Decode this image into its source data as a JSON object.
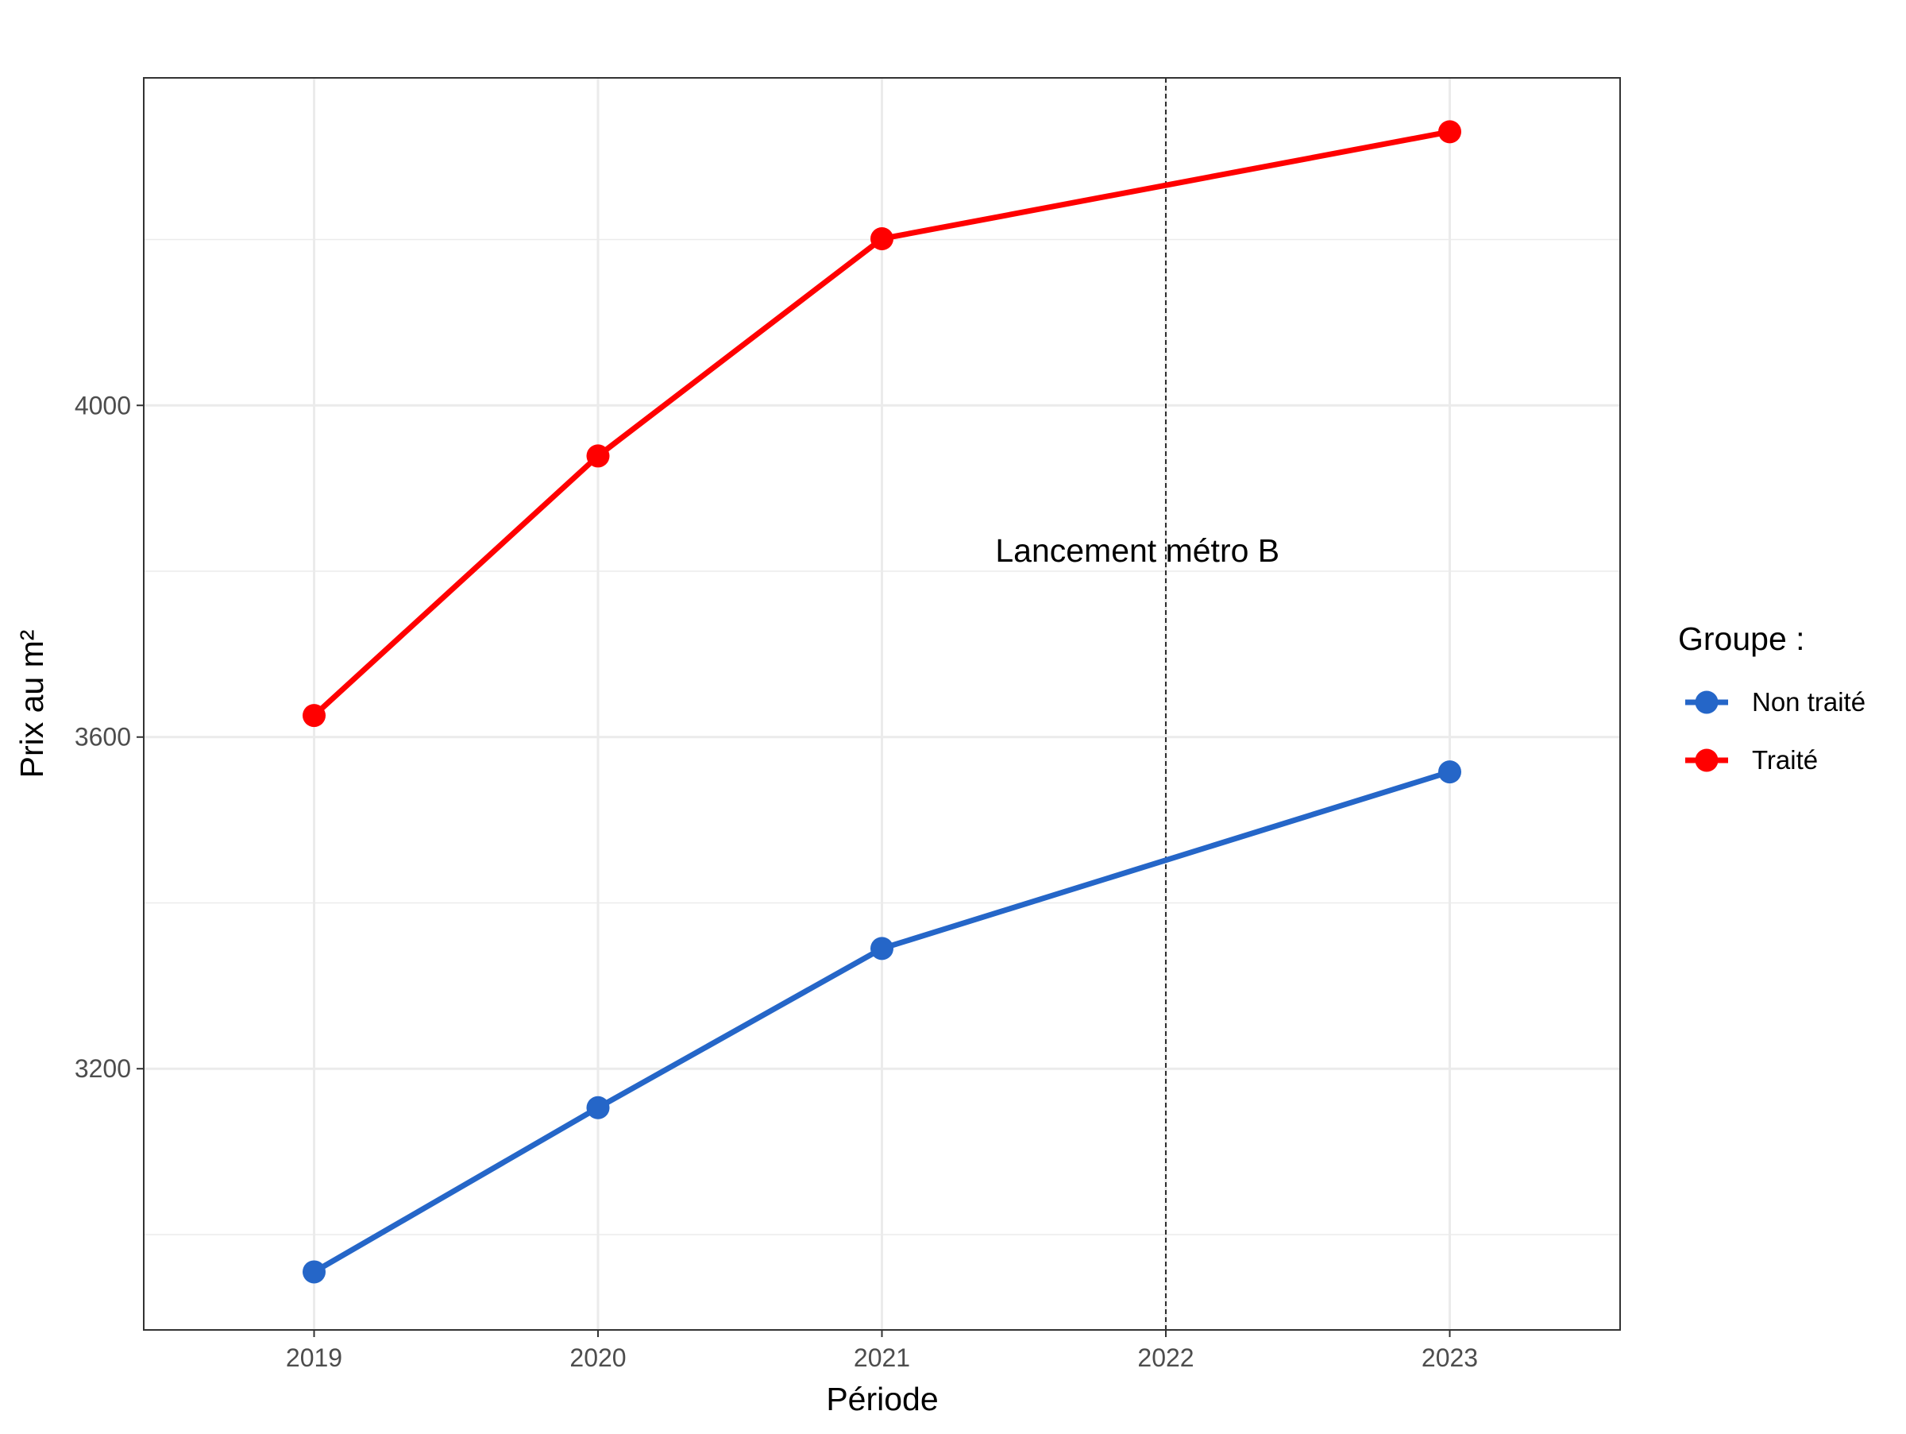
{
  "chart_data": {
    "type": "line",
    "title": "",
    "xlabel": "Période",
    "ylabel": "Prix au m²",
    "x": [
      2019,
      2020,
      2021,
      2023
    ],
    "x_ticks": [
      "2019",
      "2020",
      "2021",
      "2022",
      "2023"
    ],
    "xlim": [
      2018.4,
      2023.6
    ],
    "ylim": [
      2885,
      4395
    ],
    "y_ticks": [
      3200,
      3600,
      4000
    ],
    "grid": true,
    "series": [
      {
        "name": "Non traité",
        "color": "#2566C8",
        "values": [
          2955,
          3153,
          3345,
          3558
        ]
      },
      {
        "name": "Traité",
        "color": "#FF0000",
        "values": [
          3626,
          3939,
          4201,
          4330
        ]
      }
    ],
    "annotations": [
      {
        "type": "vline",
        "x": 2022,
        "style": "dashed"
      },
      {
        "type": "text",
        "text": "Lancement métro B",
        "x": 2021.9,
        "y": 3825
      }
    ],
    "legend": {
      "title": "Groupe :",
      "placement": "right"
    }
  }
}
